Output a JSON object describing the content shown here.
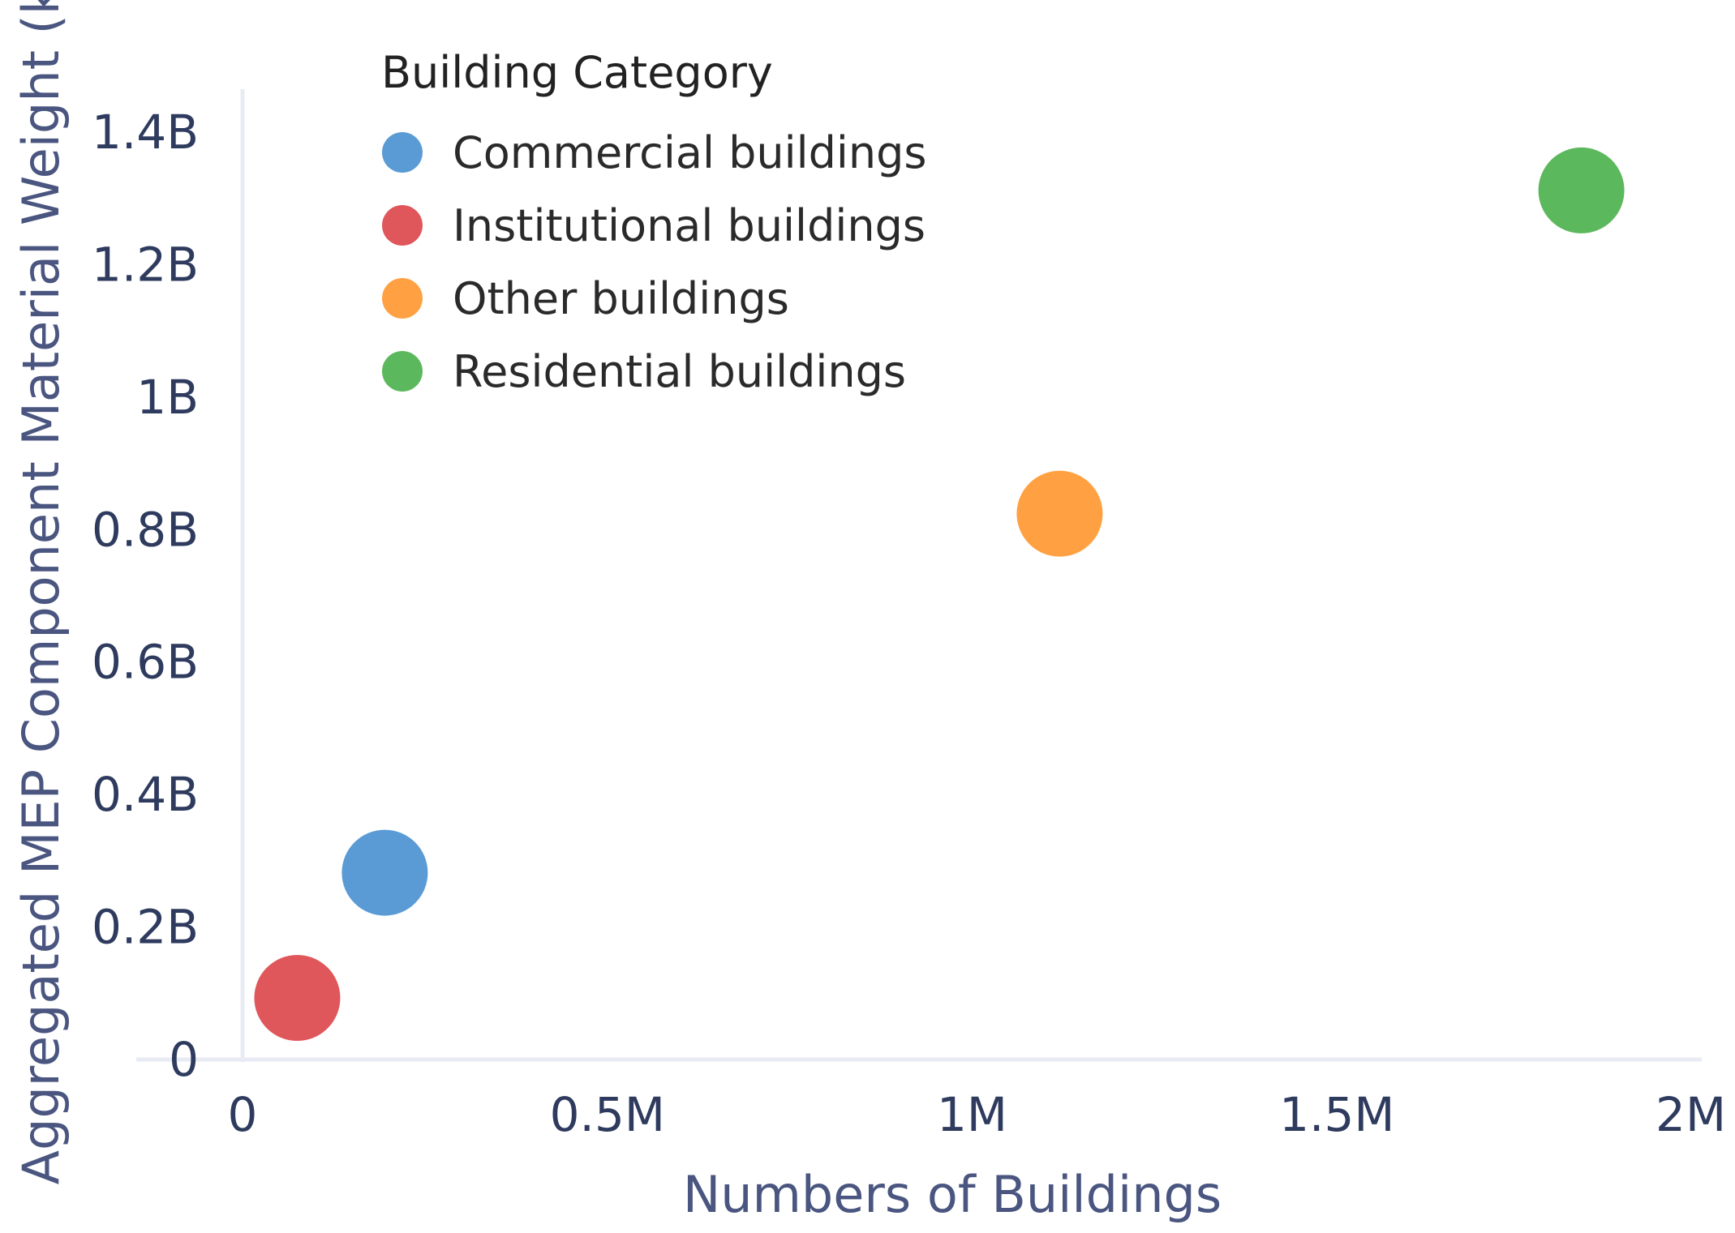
{
  "chart_data": {
    "type": "scatter",
    "xlabel": "Numbers of Buildings",
    "ylabel": "Aggregated MEP Component Material Weight (kg)",
    "xlim": [
      0,
      2000000
    ],
    "ylim": [
      0,
      1400000000
    ],
    "x_ticks": [
      {
        "value": 0,
        "label": "0"
      },
      {
        "value": 500000,
        "label": "0.5M"
      },
      {
        "value": 1000000,
        "label": "1M"
      },
      {
        "value": 1500000,
        "label": "1.5M"
      },
      {
        "value": 2000000,
        "label": "2M"
      }
    ],
    "y_ticks": [
      {
        "value": 0,
        "label": "0"
      },
      {
        "value": 200000000,
        "label": "0.2B"
      },
      {
        "value": 400000000,
        "label": "0.4B"
      },
      {
        "value": 600000000,
        "label": "0.6B"
      },
      {
        "value": 800000000,
        "label": "0.8B"
      },
      {
        "value": 1000000000,
        "label": "1B"
      },
      {
        "value": 1200000000,
        "label": "1.2B"
      },
      {
        "value": 1400000000,
        "label": "1.4B"
      }
    ],
    "grid": false,
    "legend_title": "Building Category",
    "legend_position": "top-left",
    "series": [
      {
        "name": "Commercial buildings",
        "color": "#5b9bd5",
        "x": [
          195000
        ],
        "y": [
          282000000
        ]
      },
      {
        "name": "Institutional buildings",
        "color": "#e0575b",
        "x": [
          75000
        ],
        "y": [
          93000000
        ]
      },
      {
        "name": "Other buildings",
        "color": "#ffa142",
        "x": [
          1120000
        ],
        "y": [
          824000000
        ]
      },
      {
        "name": "Residential buildings",
        "color": "#5cb85c",
        "x": [
          1835000
        ],
        "y": [
          1312000000
        ]
      }
    ]
  }
}
